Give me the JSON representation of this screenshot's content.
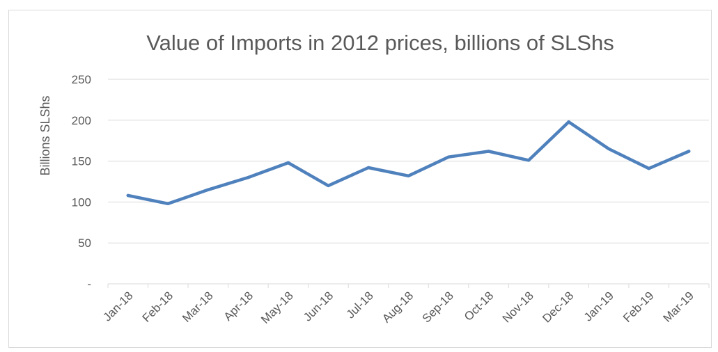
{
  "chart_data": {
    "type": "line",
    "title": "Value of Imports in 2012 prices,  billions of SLShs",
    "xlabel": "",
    "ylabel": "Billions SLShs",
    "ylim": [
      0,
      250
    ],
    "y_ticks": [
      0,
      50,
      100,
      150,
      200,
      250
    ],
    "y_tick_labels": [
      "-",
      "50",
      "100",
      "150",
      "200",
      "250"
    ],
    "grid": true,
    "legend": "none",
    "categories": [
      "Jan-18",
      "Feb-18",
      "Mar-18",
      "Apr-18",
      "May-18",
      "Jun-18",
      "Jul-18",
      "Aug-18",
      "Sep-18",
      "Oct-18",
      "Nov-18",
      "Dec-18",
      "Jan-19",
      "Feb-19",
      "Mar-19"
    ],
    "series": [
      {
        "color": "#4f81bd",
        "values": [
          108,
          98,
          115,
          130,
          148,
          120,
          142,
          132,
          155,
          162,
          151,
          198,
          165,
          141,
          162
        ]
      }
    ]
  }
}
